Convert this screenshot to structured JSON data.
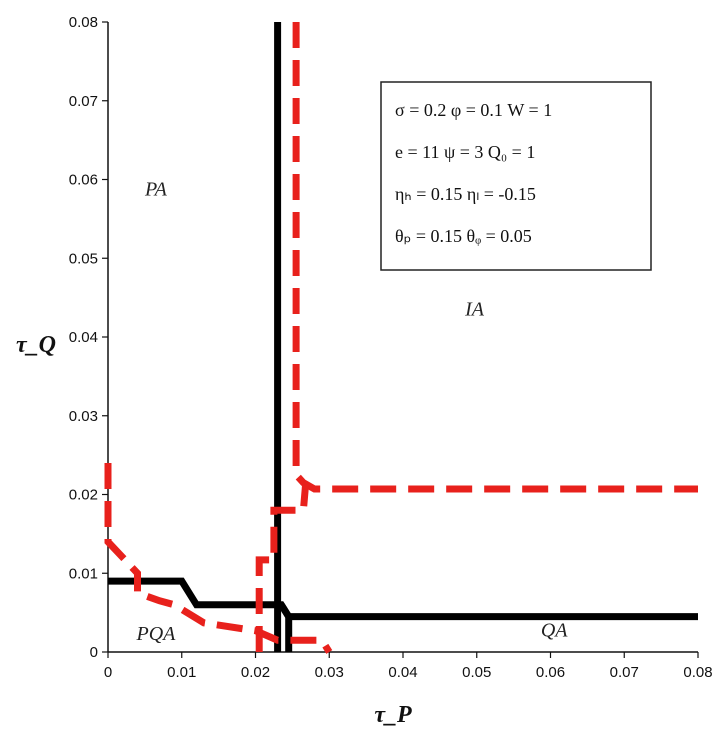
{
  "chart_data": {
    "type": "line",
    "title": "",
    "xlabel": "τ_P",
    "ylabel": "τ_Q",
    "xlim": [
      0,
      0.08
    ],
    "ylim": [
      0,
      0.08
    ],
    "x_ticks": [
      "0",
      "0.01",
      "0.02",
      "0.03",
      "0.04",
      "0.05",
      "0.06",
      "0.07",
      "0.08"
    ],
    "y_ticks": [
      "0",
      "0.01",
      "0.02",
      "0.03",
      "0.04",
      "0.05",
      "0.06",
      "0.07",
      "0.08"
    ],
    "grid": false,
    "series": [
      {
        "style": "solid",
        "color": "#000000",
        "segments": [
          [
            [
              0.023,
              0.0
            ],
            [
              0.023,
              0.08
            ]
          ],
          [
            [
              0.0,
              0.009
            ],
            [
              0.01,
              0.009
            ],
            [
              0.012,
              0.006
            ],
            [
              0.0235,
              0.006
            ],
            [
              0.0245,
              0.0045
            ],
            [
              0.08,
              0.0045
            ]
          ],
          [
            [
              0.0235,
              0.006
            ],
            [
              0.0245,
              0.0045
            ],
            [
              0.0245,
              0.0
            ]
          ]
        ]
      },
      {
        "style": "dashed",
        "color": "#e8211c",
        "segments": [
          [
            [
              0.0255,
              0.08
            ],
            [
              0.0255,
              0.0225
            ],
            [
              0.0265,
              0.0215
            ],
            [
              0.028,
              0.0207
            ],
            [
              0.08,
              0.0207
            ]
          ],
          [
            [
              0.0205,
              0.0
            ],
            [
              0.0205,
              0.0117
            ],
            [
              0.0225,
              0.0117
            ],
            [
              0.0225,
              0.018
            ],
            [
              0.0265,
              0.018
            ],
            [
              0.0268,
              0.0213
            ]
          ],
          [
            [
              0.0,
              0.024
            ],
            [
              0.0,
              0.014
            ],
            [
              0.002,
              0.012
            ],
            [
              0.004,
              0.01
            ],
            [
              0.004,
              0.0075
            ],
            [
              0.007,
              0.0065
            ],
            [
              0.009,
              0.006
            ],
            [
              0.013,
              0.0037
            ],
            [
              0.02,
              0.0027
            ],
            [
              0.023,
              0.0015
            ],
            [
              0.029,
              0.0015
            ],
            [
              0.03,
              0.0
            ]
          ]
        ]
      }
    ],
    "annotations": [
      {
        "text": "PA",
        "x": 0.0065,
        "y": 0.058
      },
      {
        "text": "IA",
        "x": 0.0497,
        "y": 0.0427
      },
      {
        "text": "PQA",
        "x": 0.0065,
        "y": 0.0015
      },
      {
        "text": "QA",
        "x": 0.0605,
        "y": 0.002
      }
    ],
    "legend_box": {
      "placement": "top-right",
      "lines": [
        "σ = 0.2  φ = 0.1  W = 1",
        "e = 11   ψ = 3  Q₀ = 1",
        "ηₕ = 0.15        ηₗ = -0.15",
        "θₚ = 0.15       θᵩ = 0.05"
      ]
    }
  }
}
